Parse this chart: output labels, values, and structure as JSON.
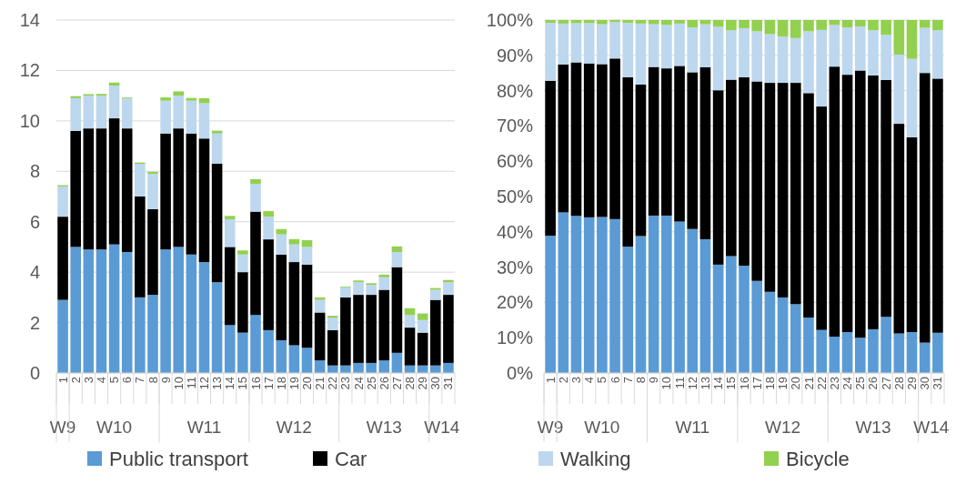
{
  "chart_data": [
    {
      "type": "bar",
      "stacked": true,
      "grid": "y",
      "legend": "bottom",
      "categories": [
        "1",
        "2",
        "3",
        "4",
        "5",
        "6",
        "7",
        "8",
        "9",
        "10",
        "11",
        "12",
        "13",
        "14",
        "15",
        "16",
        "17",
        "18",
        "19",
        "20",
        "21",
        "22",
        "23",
        "24",
        "25",
        "26",
        "27",
        "28",
        "29",
        "30",
        "31"
      ],
      "ylim": [
        0,
        14
      ],
      "yticks": [
        0,
        2,
        4,
        6,
        8,
        10,
        12,
        14
      ],
      "annotations": [
        "W9",
        "W10",
        "W11",
        "W12",
        "W13",
        "W14"
      ],
      "series": [
        {
          "name": "Public transport",
          "color": "#5b9bd5",
          "values": [
            2.9,
            5.0,
            4.9,
            4.9,
            5.1,
            4.8,
            3.0,
            3.1,
            4.9,
            5.0,
            4.7,
            4.4,
            3.6,
            1.9,
            1.6,
            2.3,
            1.7,
            1.3,
            1.1,
            1.0,
            0.5,
            0.3,
            0.3,
            0.4,
            0.4,
            0.5,
            0.8,
            0.3,
            0.3,
            0.3,
            0.4
          ]
        },
        {
          "name": "Car",
          "color": "#000000",
          "values": [
            3.3,
            4.6,
            4.8,
            4.8,
            5.0,
            4.9,
            4.0,
            3.4,
            4.6,
            4.7,
            4.8,
            4.9,
            4.7,
            3.1,
            2.4,
            4.1,
            3.6,
            3.4,
            3.3,
            3.3,
            1.9,
            1.4,
            2.7,
            2.7,
            2.7,
            2.8,
            3.4,
            1.5,
            1.3,
            2.6,
            2.7
          ]
        },
        {
          "name": "Walking",
          "color": "#bdd7ee",
          "values": [
            1.2,
            1.3,
            1.3,
            1.3,
            1.3,
            1.2,
            1.3,
            1.4,
            1.3,
            1.3,
            1.3,
            1.4,
            1.2,
            1.1,
            0.7,
            1.1,
            0.9,
            0.8,
            0.7,
            0.7,
            0.5,
            0.5,
            0.4,
            0.5,
            0.4,
            0.5,
            0.6,
            0.5,
            0.5,
            0.4,
            0.5
          ]
        },
        {
          "name": "Bicycle",
          "color": "#92d050",
          "values": [
            0.05,
            0.08,
            0.06,
            0.07,
            0.12,
            0.03,
            0.05,
            0.08,
            0.13,
            0.17,
            0.11,
            0.2,
            0.11,
            0.13,
            0.16,
            0.19,
            0.22,
            0.21,
            0.21,
            0.27,
            0.1,
            0.07,
            0.03,
            0.07,
            0.06,
            0.1,
            0.22,
            0.27,
            0.26,
            0.07,
            0.09
          ]
        }
      ]
    },
    {
      "type": "bar",
      "stacked": true,
      "grid": "y",
      "categories": [
        "1",
        "2",
        "3",
        "4",
        "5",
        "6",
        "7",
        "8",
        "9",
        "10",
        "11",
        "12",
        "13",
        "14",
        "15",
        "16",
        "17",
        "18",
        "19",
        "20",
        "21",
        "22",
        "23",
        "24",
        "25",
        "26",
        "27",
        "28",
        "29",
        "30",
        "31"
      ],
      "ylim": [
        0,
        100
      ],
      "yticks": [
        {
          "value": 0,
          "label": "0%"
        },
        {
          "value": 10,
          "label": "10%"
        },
        {
          "value": 20,
          "label": "20%"
        },
        {
          "value": 30,
          "label": "30%"
        },
        {
          "value": 40,
          "label": "40%"
        },
        {
          "value": 50,
          "label": "50%"
        },
        {
          "value": 60,
          "label": "60%"
        },
        {
          "value": 70,
          "label": "70%"
        },
        {
          "value": 80,
          "label": "80%"
        },
        {
          "value": 90,
          "label": "90%"
        },
        {
          "value": 100,
          "label": "100%"
        }
      ],
      "annotations": [
        "W9",
        "W10",
        "W11",
        "W12",
        "W13",
        "W14"
      ],
      "series": [
        {
          "color": "#5b9bd5",
          "values": [
            38.9,
            45.5,
            44.5,
            44.1,
            44.2,
            43.6,
            35.8,
            38.8,
            44.6,
            44.6,
            42.9,
            40.8,
            37.9,
            30.7,
            33.1,
            30.4,
            26.1,
            23.0,
            21.4,
            19.5,
            15.7,
            12.2,
            10.3,
            11.6,
            10.0,
            12.4,
            15.9,
            11.2,
            11.6,
            8.6,
            11.4
          ]
        },
        {
          "color": "#000000",
          "values": [
            43.9,
            41.9,
            43.5,
            43.6,
            43.3,
            45.5,
            48.0,
            42.9,
            42.1,
            41.7,
            44.1,
            44.4,
            48.7,
            49.4,
            50.0,
            53.4,
            56.5,
            59.2,
            60.8,
            62.7,
            63.6,
            63.3,
            76.5,
            72.9,
            75.7,
            71.9,
            67.1,
            59.4,
            55.2,
            76.4,
            72.0
          ]
        },
        {
          "color": "#bdd7ee",
          "values": [
            16.4,
            11.6,
            11.1,
            11.4,
            11.3,
            10.3,
            15.4,
            17.3,
            12.1,
            12.3,
            12.0,
            12.7,
            12.2,
            18.0,
            14.0,
            13.9,
            14.2,
            13.8,
            13.1,
            12.7,
            17.5,
            21.7,
            11.8,
            13.4,
            12.5,
            12.8,
            12.8,
            19.6,
            22.2,
            12.8,
            13.7
          ]
        },
        {
          "color": "#92d050",
          "values": [
            0.8,
            1.0,
            0.9,
            0.9,
            1.2,
            0.6,
            0.8,
            1.0,
            1.2,
            1.4,
            1.0,
            2.1,
            1.2,
            1.9,
            2.9,
            2.3,
            3.2,
            4.0,
            4.7,
            5.1,
            3.2,
            2.8,
            1.4,
            2.1,
            1.8,
            2.9,
            4.2,
            9.8,
            11.0,
            2.2,
            2.9
          ]
        }
      ]
    }
  ]
}
